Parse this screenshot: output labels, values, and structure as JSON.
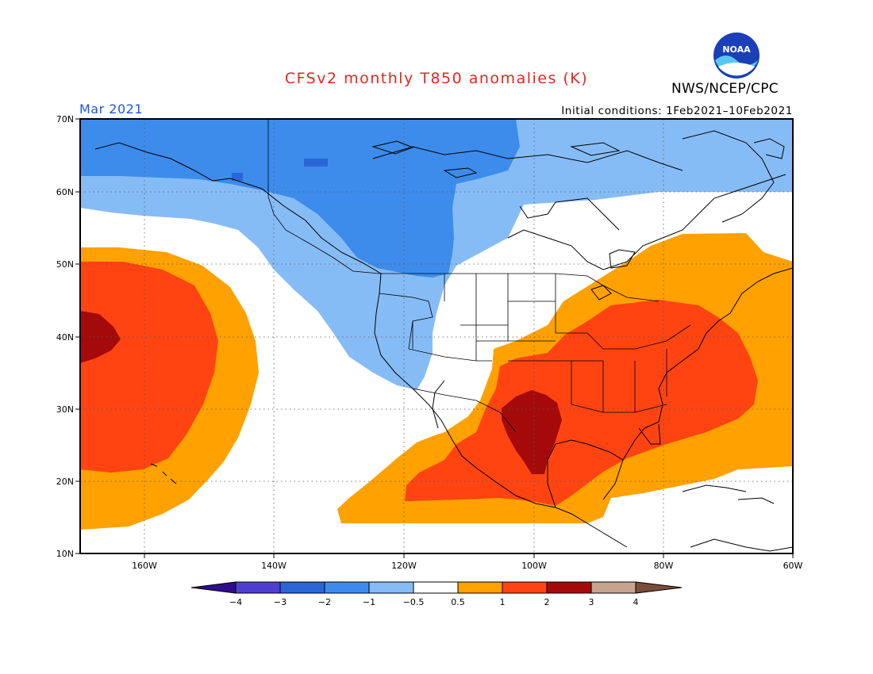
{
  "header": {
    "title": "CFSv2 monthly T850 anomalies (K)",
    "month": "Mar 2021",
    "agency": "NWS/NCEP/CPC",
    "initial_conditions": "Initial conditions: 1Feb2021–10Feb2021"
  },
  "logo": {
    "icon": "noaa-logo-icon",
    "text": "NOAA"
  },
  "axes": {
    "lon_labels": [
      "160W",
      "140W",
      "120W",
      "100W",
      "80W",
      "60W"
    ],
    "lat_labels": [
      "70N",
      "60N",
      "50N",
      "40N",
      "30N",
      "20N",
      "10N"
    ]
  },
  "colorbar": {
    "labels": [
      "−4",
      "−3",
      "−2",
      "−1",
      "−0.5",
      "0.5",
      "1",
      "2",
      "3",
      "4"
    ],
    "colors": [
      "#2e0d8c",
      "#4f3fd0",
      "#2a66d6",
      "#3d8cec",
      "#86bcf6",
      "#ffffff",
      "#ffa100",
      "#ff4412",
      "#a50a0a",
      "#c8a390",
      "#7a4e3a"
    ]
  },
  "colors": {
    "title": "#e8251d",
    "month": "#1f55e6"
  }
}
